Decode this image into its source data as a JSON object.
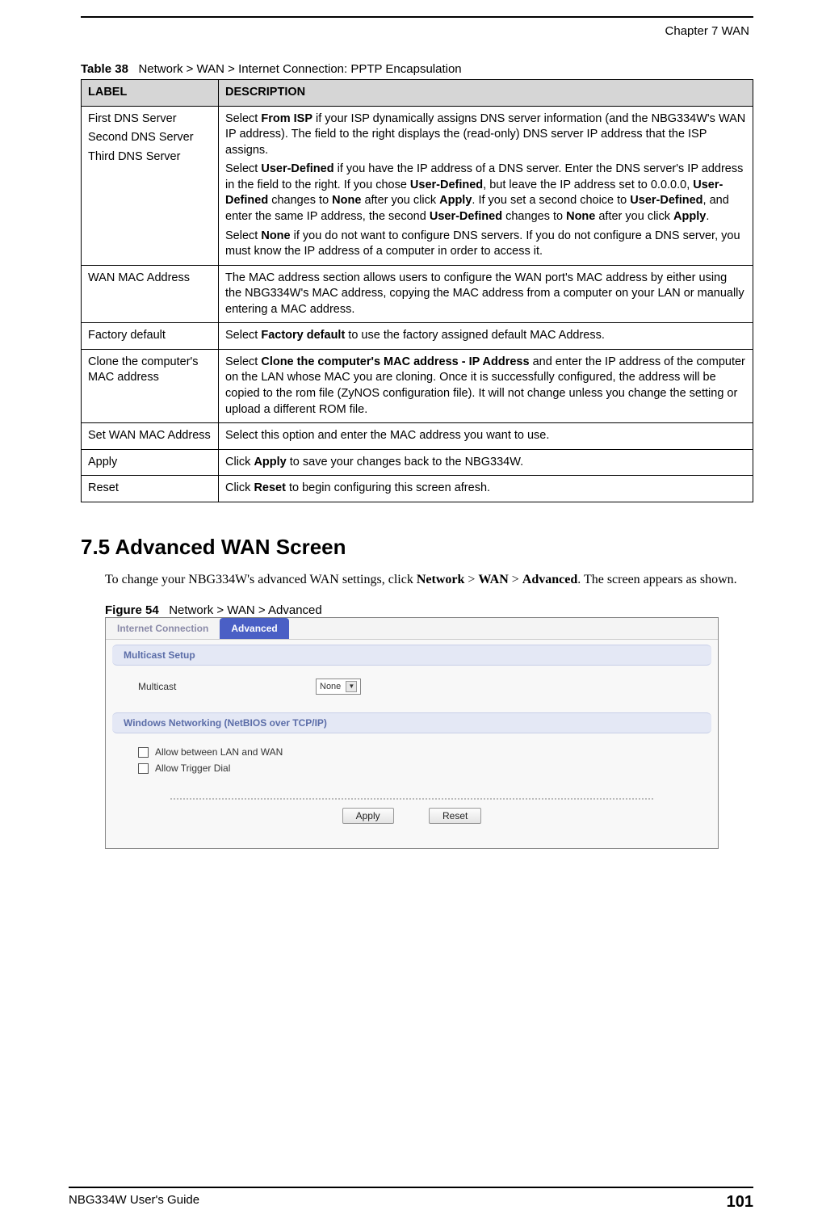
{
  "chapter_header": "Chapter 7 WAN",
  "table_caption_prefix": "Table 38",
  "table_caption_text": "Network > WAN > Internet Connection: PPTP Encapsulation",
  "table": {
    "headers": [
      "LABEL",
      "DESCRIPTION"
    ],
    "rows": [
      {
        "label_lines": [
          "First DNS Server",
          "Second DNS Server",
          "Third DNS Server"
        ],
        "desc_html": "Select <b>From ISP</b> if your ISP dynamically assigns DNS server information (and the NBG334W's WAN IP address). The field to the right displays the (read-only) DNS server IP address that the ISP assigns.|Select <b>User-Defined</b> if you have the IP address of a DNS server. Enter the DNS server's IP address in the field to the right. If you chose <b>User-Defined</b>, but leave the IP address set to 0.0.0.0, <b>User-Defined</b> changes to <b>None</b> after you click <b>Apply</b>. If you set a second choice to <b>User-Defined</b>, and enter the same IP address, the second <b>User-Defined</b> changes to <b>None</b> after you click <b>Apply</b>.|Select <b>None</b> if you do not want to configure DNS servers. If you do not configure a DNS server, you must know the IP address of a computer in order to access it."
      },
      {
        "label_lines": [
          "WAN MAC Address"
        ],
        "desc_html": "The MAC address section allows users to configure the WAN port's MAC address by either using the NBG334W's MAC address, copying the MAC address from a computer on your LAN or manually entering a MAC address."
      },
      {
        "label_lines": [
          "Factory default"
        ],
        "desc_html": "Select <b>Factory default</b> to use the factory assigned default MAC Address."
      },
      {
        "label_lines": [
          "Clone the computer's MAC address"
        ],
        "desc_html": "Select <b>Clone the computer's MAC address - IP Address</b> and enter the IP address of the computer on the LAN whose MAC you are cloning. Once it is successfully configured, the address will be copied to the rom file (ZyNOS configuration file). It will not change unless you change the setting or upload a different ROM file."
      },
      {
        "label_lines": [
          "Set WAN MAC Address"
        ],
        "desc_html": "Select this option and enter the MAC address you want to use."
      },
      {
        "label_lines": [
          "Apply"
        ],
        "desc_html": "Click <b>Apply</b> to save your changes back to the NBG334W."
      },
      {
        "label_lines": [
          "Reset"
        ],
        "desc_html": "Click <b>Reset</b> to begin configuring this screen afresh."
      }
    ]
  },
  "section_heading": "7.5  Advanced WAN Screen",
  "body_text_html": "To change your NBG334W's advanced WAN settings, click <b>Network</b> > <b>WAN</b> > <b>Advanced</b>. The screen appears as shown.",
  "figure_caption_prefix": "Figure 54",
  "figure_caption_text": "Network > WAN > Advanced",
  "screenshot": {
    "tabs": [
      {
        "label": "Internet Connection",
        "active": false
      },
      {
        "label": "Advanced",
        "active": true
      }
    ],
    "multicast_section_title": "Multicast Setup",
    "multicast_label": "Multicast",
    "multicast_value": "None",
    "netbios_section_title": "Windows Networking (NetBIOS over TCP/IP)",
    "cb1_label": "Allow between LAN and WAN",
    "cb2_label": "Allow Trigger Dial",
    "apply_btn": "Apply",
    "reset_btn": "Reset"
  },
  "footer_left": "NBG334W User's Guide",
  "footer_page": "101"
}
